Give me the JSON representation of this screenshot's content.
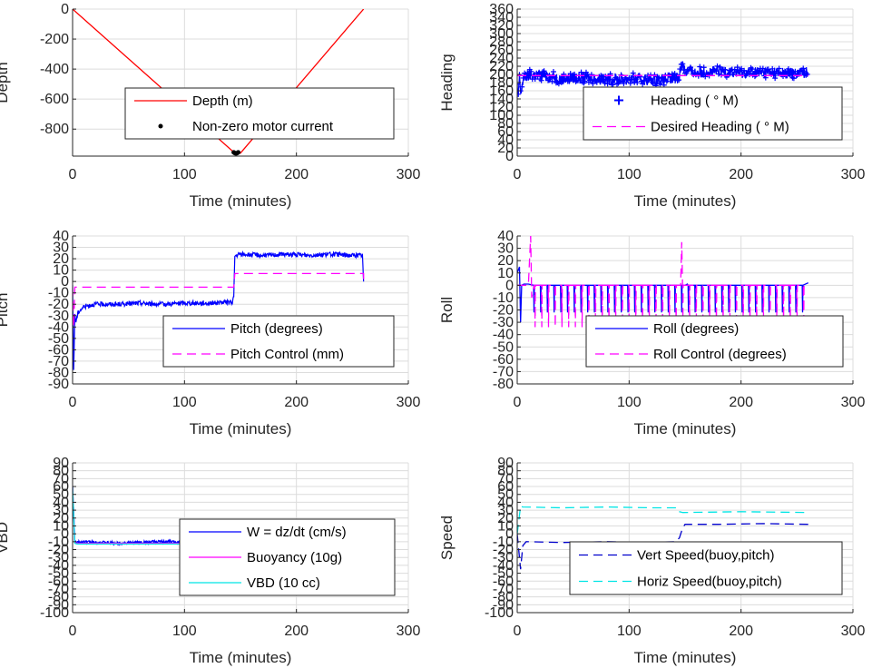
{
  "chart_data": [
    {
      "type": "line",
      "ylabel": "Depth",
      "xlabel": "Time (minutes)",
      "xlim": [
        0,
        300
      ],
      "ylim": [
        -980,
        0
      ],
      "xticks": [
        "0",
        "100",
        "200",
        "300"
      ],
      "yticks": [
        0,
        -200,
        -400,
        -600,
        -800
      ],
      "ytick_labels": [
        "0",
        "-200",
        "-400",
        "-600",
        "-800"
      ],
      "series": [
        {
          "name": "Depth (m)",
          "style": "solid",
          "color": "#ff0000",
          "x": [
            0,
            145,
            150,
            260
          ],
          "y": [
            0,
            -960,
            -960,
            0
          ]
        },
        {
          "name": "Non-zero motor current",
          "style": "dot",
          "color": "#000000",
          "x": [
            144,
            145,
            146,
            147,
            148
          ],
          "y": [
            -955,
            -960,
            -962,
            -960,
            -955
          ]
        }
      ],
      "legend": "center"
    },
    {
      "type": "line",
      "ylabel": "Heading",
      "xlabel": "Time (minutes)",
      "xlim": [
        0,
        300
      ],
      "ylim": [
        0,
        360
      ],
      "xticks": [
        "0",
        "100",
        "200",
        "300"
      ],
      "yticks": [
        0,
        20,
        40,
        60,
        80,
        100,
        120,
        140,
        160,
        180,
        200,
        220,
        240,
        260,
        280,
        300,
        320,
        340,
        360
      ],
      "ytick_labels": [
        "0",
        "20",
        "40",
        "60",
        "80",
        "100",
        "120",
        "140",
        "160",
        "180",
        "200",
        "220",
        "240",
        "260",
        "280",
        "300",
        "320",
        "340",
        "360"
      ],
      "series": [
        {
          "name": "Heading ( ° M)",
          "style": "plus-line",
          "color": "#0000ff",
          "x": [
            0,
            1,
            2,
            3,
            5,
            8,
            12,
            20,
            40,
            60,
            80,
            100,
            120,
            140,
            145,
            148,
            150,
            160,
            180,
            200,
            220,
            240,
            260
          ],
          "y": [
            170,
            140,
            200,
            150,
            185,
            195,
            200,
            198,
            190,
            192,
            188,
            190,
            186,
            188,
            200,
            230,
            210,
            205,
            208,
            204,
            206,
            203,
            205
          ],
          "band": 14
        },
        {
          "name": "Desired Heading ( ° M)",
          "style": "dashed",
          "color": "#ff00ff",
          "x": [
            0,
            260
          ],
          "y": [
            197,
            197
          ]
        }
      ],
      "legend": "lower-right"
    },
    {
      "type": "line",
      "ylabel": "Pitch",
      "xlabel": "Time (minutes)",
      "xlim": [
        0,
        300
      ],
      "ylim": [
        -90,
        40
      ],
      "xticks": [
        "0",
        "100",
        "200",
        "300"
      ],
      "yticks": [
        40,
        30,
        20,
        10,
        0,
        -10,
        -20,
        -30,
        -40,
        -50,
        -60,
        -70,
        -80,
        -90
      ],
      "ytick_labels": [
        "40",
        "30",
        "20",
        "10",
        "0",
        "-10",
        "-20",
        "-30",
        "-40",
        "-50",
        "-60",
        "-70",
        "-80",
        "-90"
      ],
      "series": [
        {
          "name": "Pitch (degrees)",
          "style": "solid",
          "color": "#0000ff",
          "x": [
            0,
            1,
            2,
            3,
            5,
            10,
            20,
            40,
            60,
            80,
            100,
            120,
            143,
            144,
            145,
            150,
            170,
            190,
            210,
            230,
            250,
            259,
            260
          ],
          "y": [
            -5,
            -78,
            -30,
            -35,
            -27,
            -22,
            -20,
            -20,
            -19,
            -20,
            -19,
            -19,
            -18,
            -12,
            22,
            24,
            23,
            24,
            23,
            24,
            23,
            23,
            0
          ],
          "band": 2
        },
        {
          "name": "Pitch Control (mm)",
          "style": "dashed",
          "color": "#ff00ff",
          "x": [
            0,
            1,
            2,
            3,
            144,
            145,
            260,
            260
          ],
          "y": [
            -5,
            -40,
            -5,
            -5,
            -5,
            7,
            7,
            0
          ]
        }
      ],
      "legend": "lower-right"
    },
    {
      "type": "line",
      "ylabel": "Roll",
      "xlabel": "Time (minutes)",
      "xlim": [
        0,
        300
      ],
      "ylim": [
        -80,
        40
      ],
      "xticks": [
        "0",
        "100",
        "200",
        "300"
      ],
      "yticks": [
        40,
        30,
        20,
        10,
        0,
        -10,
        -20,
        -30,
        -40,
        -50,
        -60,
        -70,
        -80
      ],
      "ytick_labels": [
        "40",
        "30",
        "20",
        "10",
        "0",
        "-10",
        "-20",
        "-30",
        "-40",
        "-50",
        "-60",
        "-70",
        "-80"
      ],
      "series": [
        {
          "name": "Roll (degrees)",
          "style": "solid",
          "color": "#0000ff",
          "x": [
            0,
            2,
            3,
            4,
            6,
            10,
            150,
            152,
            260
          ],
          "y": [
            10,
            15,
            -30,
            0,
            1,
            1,
            0,
            1,
            2
          ],
          "spikes": {
            "from": 15,
            "to": 258,
            "step": 6,
            "depth": -22
          }
        },
        {
          "name": "Roll Control (degrees)",
          "style": "dashed",
          "color": "#ff00ff",
          "x": [
            0,
            10,
            12,
            13,
            15,
            146,
            147,
            148,
            150,
            260
          ],
          "y": [
            0,
            0,
            40,
            -10,
            0,
            0,
            35,
            -5,
            0,
            0
          ],
          "spikes": {
            "from": 16,
            "to": 257,
            "step": 6,
            "depth": -34
          }
        }
      ],
      "legend": "lower-right"
    },
    {
      "type": "line",
      "ylabel": "VBD",
      "xlabel": "Time (minutes)",
      "xlim": [
        0,
        300
      ],
      "ylim": [
        -100,
        90
      ],
      "xticks": [
        "0",
        "100",
        "200",
        "300"
      ],
      "yticks": [
        90,
        80,
        70,
        60,
        50,
        40,
        30,
        20,
        10,
        0,
        -10,
        -20,
        -30,
        -40,
        -50,
        -60,
        -70,
        -80,
        -90,
        -100
      ],
      "ytick_labels": [
        "90",
        "80",
        "70",
        "60",
        "50",
        "40",
        "30",
        "20",
        "10",
        "0",
        "-10",
        "-20",
        "-30",
        "-40",
        "-50",
        "-60",
        "-70",
        "-80",
        "-90",
        "-100"
      ],
      "series": [
        {
          "name": "W = dz/dt (cm/s)",
          "style": "solid",
          "color": "#0000ff",
          "x": [
            0,
            2,
            4,
            10,
            40,
            80,
            120,
            143,
            145,
            150,
            200,
            260
          ],
          "y": [
            60,
            -10,
            -11,
            -10,
            -12,
            -10,
            -11,
            -10,
            14,
            15,
            14,
            14
          ],
          "band": 2
        },
        {
          "name": "Buoyancy (10g)",
          "style": "solid",
          "color": "#ff00ff",
          "x": [
            0,
            2,
            4,
            144,
            145,
            260
          ],
          "y": [
            60,
            -11,
            -12,
            -12,
            12,
            12
          ]
        },
        {
          "name": "VBD (10 cc)",
          "style": "solid",
          "color": "#00e5e5",
          "x": [
            0,
            2,
            4,
            144,
            145,
            260
          ],
          "y": [
            60,
            -12,
            -13,
            -13,
            14,
            14
          ]
        }
      ],
      "legend": "lower-right"
    },
    {
      "type": "line",
      "ylabel": "Speed",
      "xlabel": "Time (minutes)",
      "xlim": [
        0,
        300
      ],
      "ylim": [
        -100,
        90
      ],
      "xticks": [
        "0",
        "100",
        "200",
        "300"
      ],
      "yticks": [
        90,
        80,
        70,
        60,
        50,
        40,
        30,
        20,
        10,
        0,
        -10,
        -20,
        -30,
        -40,
        -50,
        -60,
        -70,
        -80,
        -90,
        -100
      ],
      "ytick_labels": [
        "90",
        "80",
        "70",
        "60",
        "50",
        "40",
        "30",
        "20",
        "10",
        "0",
        "-10",
        "-20",
        "-30",
        "-40",
        "-50",
        "-60",
        "-70",
        "-80",
        "-90",
        "-100"
      ],
      "series": [
        {
          "name": "Vert Speed(buoy,pitch)",
          "style": "dashed",
          "color": "#0000cc",
          "x": [
            0,
            3,
            5,
            8,
            40,
            80,
            120,
            142,
            145,
            148,
            150,
            180,
            220,
            260
          ],
          "y": [
            0,
            -45,
            -15,
            -10,
            -11,
            -10,
            -11,
            -10,
            -5,
            8,
            12,
            12,
            13,
            12
          ]
        },
        {
          "name": "Horiz Speed(buoy,pitch)",
          "style": "dashed",
          "color": "#00e5e5",
          "x": [
            0,
            3,
            5,
            40,
            80,
            120,
            143,
            145,
            148,
            200,
            260
          ],
          "y": [
            0,
            35,
            34,
            33,
            34,
            33,
            33,
            28,
            27,
            28,
            27
          ]
        }
      ],
      "legend": "lower-right"
    }
  ]
}
